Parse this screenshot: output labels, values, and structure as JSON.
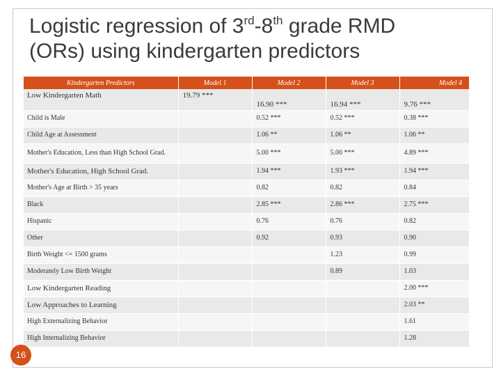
{
  "slide": {
    "title_line1_prefix": "Logistic regression of 3",
    "title_sup1": "rd",
    "title_line1_middle": "-8",
    "title_sup2": "th",
    "title_line1_suffix": " grade RMD",
    "title_line2": "(ORs) using kindergarten predictors",
    "page_number": "16"
  },
  "table": {
    "headers": [
      "Kindergarten Predictors",
      "Model 1",
      "Model 2",
      "Model 3",
      "Model 4"
    ],
    "rows": [
      {
        "predictor": "Low Kindergarten Math",
        "m1": "19.79 ***",
        "m2": "16.90 ***",
        "m3": "16.94 ***",
        "m4": "9.76 ***"
      },
      {
        "predictor": "Child is Male",
        "m1": "",
        "m2": "0.52 ***",
        "m3": "0.52 ***",
        "m4": "0.38 ***"
      },
      {
        "predictor": "Child Age at Assessment",
        "m1": "",
        "m2": "1.06 **",
        "m3": "1.06 **",
        "m4": "1.06 **"
      },
      {
        "predictor": "Mother's Education, Less than High School Grad.",
        "m1": "",
        "m2": "5.00 ***",
        "m3": "5.00 ***",
        "m4": "4.89 ***"
      },
      {
        "predictor": "Mother's Education, High School Grad.",
        "m1": "",
        "m2": "1.94 ***",
        "m3": "1.93 ***",
        "m4": "1.94 ***"
      },
      {
        "predictor": "Mother's Age at Birth > 35 years",
        "m1": "",
        "m2": "0.82",
        "m3": "0.82",
        "m4": "0.84"
      },
      {
        "predictor": "Black",
        "m1": "",
        "m2": "2.85 ***",
        "m3": "2.86 ***",
        "m4": "2.75 ***"
      },
      {
        "predictor": "Hispanic",
        "m1": "",
        "m2": "0.76",
        "m3": "0.76",
        "m4": "0.82"
      },
      {
        "predictor": "Other",
        "m1": "",
        "m2": "0.92",
        "m3": "0.93",
        "m4": "0.90"
      },
      {
        "predictor": "Birth Weight <= 1500 grams",
        "m1": "",
        "m2": "",
        "m3": "1.23",
        "m4": "0.99"
      },
      {
        "predictor": "Moderately Low Birth Weight",
        "m1": "",
        "m2": "",
        "m3": "0.89",
        "m4": "1.03"
      },
      {
        "predictor": "Low Kindergarten Reading",
        "m1": "",
        "m2": "",
        "m3": "",
        "m4": "2.00 ***"
      },
      {
        "predictor": "Low Approaches to Learning",
        "m1": "",
        "m2": "",
        "m3": "",
        "m4": "2.03 **"
      },
      {
        "predictor": "High Externalizing Behavior",
        "m1": "",
        "m2": "",
        "m3": "",
        "m4": "1.61"
      },
      {
        "predictor": "High Internalizing Behavior",
        "m1": "",
        "m2": "",
        "m3": "",
        "m4": "1.28"
      }
    ]
  },
  "colors": {
    "header_bg": "#d5501a",
    "row_dark": "#e9e9e9",
    "row_light": "#f6f6f6",
    "page_circle": "#d5501a"
  }
}
